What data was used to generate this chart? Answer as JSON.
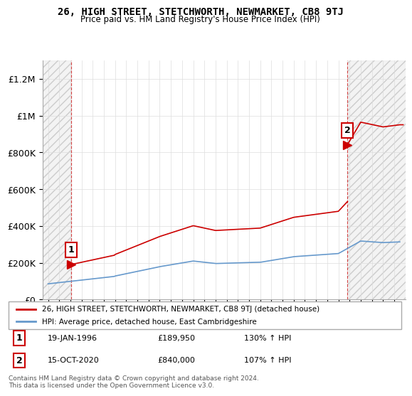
{
  "title": "26, HIGH STREET, STETCHWORTH, NEWMARKET, CB8 9TJ",
  "subtitle": "Price paid vs. HM Land Registry's House Price Index (HPI)",
  "legend_line1": "26, HIGH STREET, STETCHWORTH, NEWMARKET, CB8 9TJ (detached house)",
  "legend_line2": "HPI: Average price, detached house, East Cambridgeshire",
  "footnote": "Contains HM Land Registry data © Crown copyright and database right 2024.\nThis data is licensed under the Open Government Licence v3.0.",
  "point1_label": "1",
  "point1_date": "19-JAN-1996",
  "point1_price": "£189,950",
  "point1_hpi": "130% ↑ HPI",
  "point1_year": 1996.05,
  "point1_value": 189950,
  "point2_label": "2",
  "point2_date": "15-OCT-2020",
  "point2_price": "£840,000",
  "point2_hpi": "107% ↑ HPI",
  "point2_year": 2020.79,
  "point2_value": 840000,
  "red_color": "#cc0000",
  "blue_color": "#6699cc",
  "hatch_color": "#cccccc",
  "background_color": "#ffffff",
  "ylim_min": 0,
  "ylim_max": 1300000,
  "xlim_min": 1993.5,
  "xlim_max": 2026.0,
  "yticks": [
    0,
    200000,
    400000,
    600000,
    800000,
    1000000,
    1200000
  ],
  "ytick_labels": [
    "£0",
    "£200K",
    "£400K",
    "£600K",
    "£800K",
    "£1M",
    "£1.2M"
  ],
  "xticks": [
    1994,
    1995,
    1996,
    1997,
    1998,
    1999,
    2000,
    2001,
    2002,
    2003,
    2004,
    2005,
    2006,
    2007,
    2008,
    2009,
    2010,
    2011,
    2012,
    2013,
    2014,
    2015,
    2016,
    2017,
    2018,
    2019,
    2020,
    2021,
    2022,
    2023,
    2024,
    2025
  ]
}
